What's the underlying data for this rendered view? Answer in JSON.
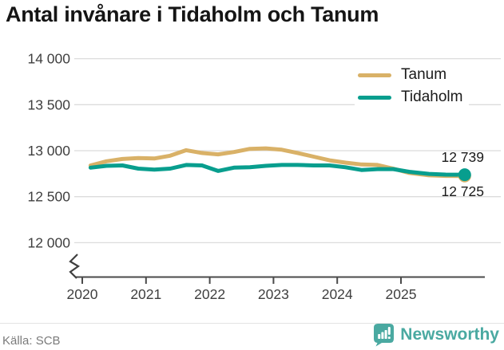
{
  "page": {
    "title": "Antal invånare i Tidaholm och Tanum",
    "source": "Källa: SCB",
    "brand_name": "Newsworthy"
  },
  "colors": {
    "tanum": "#d9b167",
    "tidaholm": "#089e8e",
    "brand_teal": "#4aa9a1",
    "grid": "#dcdcdc",
    "axis": "#4a4a4a",
    "text_dark": "#1a1a1a",
    "text_axis": "#3f3f3f",
    "text_muted": "#7b7b7b"
  },
  "chart_data": {
    "type": "line",
    "title": "Antal invånare i Tidaholm och Tanum",
    "xlabel": "",
    "ylabel": "",
    "x_ticks": [
      "2020",
      "2021",
      "2022",
      "2023",
      "2024",
      "2025"
    ],
    "y_ticks": [
      14000,
      13500,
      13000,
      12500,
      12000
    ],
    "y_tick_labels": [
      "14 000",
      "13 500",
      "13 000",
      "12 500",
      "12 000"
    ],
    "ylim": [
      12000,
      14000
    ],
    "axis_break": true,
    "grid": true,
    "legend_position": "top-right",
    "x_years": [
      2020.13,
      2020.38,
      2020.63,
      2020.88,
      2021.13,
      2021.38,
      2021.63,
      2021.88,
      2022.13,
      2022.38,
      2022.63,
      2022.88,
      2023.13,
      2023.38,
      2023.63,
      2023.88,
      2024.13,
      2024.38,
      2024.63,
      2024.88,
      2025.13,
      2025.44,
      2025.7,
      2026.0
    ],
    "series": [
      {
        "name": "Tanum",
        "color": "#d9b167",
        "end_value": 12725,
        "end_label": "12 725",
        "values": [
          12840,
          12885,
          12910,
          12920,
          12915,
          12945,
          13005,
          12975,
          12960,
          12985,
          13020,
          13025,
          13010,
          12975,
          12935,
          12895,
          12870,
          12850,
          12845,
          12805,
          12758,
          12732,
          12726,
          12725
        ]
      },
      {
        "name": "Tidaholm",
        "color": "#089e8e",
        "end_value": 12739,
        "end_label": "12 739",
        "values": [
          12815,
          12835,
          12840,
          12805,
          12795,
          12805,
          12845,
          12840,
          12780,
          12815,
          12820,
          12835,
          12845,
          12845,
          12840,
          12840,
          12820,
          12790,
          12800,
          12800,
          12770,
          12748,
          12740,
          12739
        ]
      }
    ]
  }
}
